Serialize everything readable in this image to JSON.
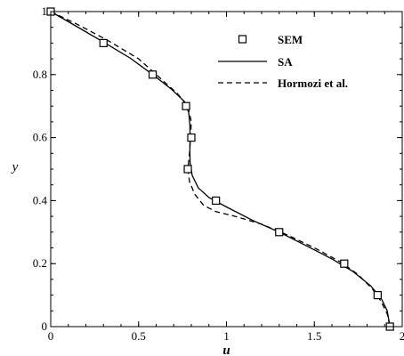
{
  "chart_data": {
    "type": "line",
    "xlabel": "u",
    "ylabel": "y",
    "xlim": [
      0,
      2
    ],
    "ylim": [
      0,
      1
    ],
    "x_ticks": [
      "0",
      "0.5",
      "1",
      "1.5",
      "2"
    ],
    "y_ticks": [
      "0",
      "0.2",
      "0.4",
      "0.6",
      "0.8",
      "1"
    ],
    "legend_position": "top-right",
    "grid": false,
    "series": [
      {
        "name": "SEM",
        "style": "markers",
        "marker": "open-square",
        "color": "#000000",
        "points": [
          {
            "x": 0.0,
            "y": 1.0
          },
          {
            "x": 0.3,
            "y": 0.9
          },
          {
            "x": 0.58,
            "y": 0.8
          },
          {
            "x": 0.77,
            "y": 0.7
          },
          {
            "x": 0.8,
            "y": 0.6
          },
          {
            "x": 0.78,
            "y": 0.5
          },
          {
            "x": 0.94,
            "y": 0.4
          },
          {
            "x": 1.3,
            "y": 0.3
          },
          {
            "x": 1.67,
            "y": 0.2
          },
          {
            "x": 1.86,
            "y": 0.1
          },
          {
            "x": 1.93,
            "y": 0.0
          }
        ]
      },
      {
        "name": "SA",
        "style": "solid",
        "color": "#000000",
        "points": [
          {
            "x": 0.0,
            "y": 1.0
          },
          {
            "x": 0.15,
            "y": 0.952
          },
          {
            "x": 0.3,
            "y": 0.903
          },
          {
            "x": 0.45,
            "y": 0.853
          },
          {
            "x": 0.58,
            "y": 0.8
          },
          {
            "x": 0.69,
            "y": 0.752
          },
          {
            "x": 0.76,
            "y": 0.715
          },
          {
            "x": 0.785,
            "y": 0.68
          },
          {
            "x": 0.792,
            "y": 0.64
          },
          {
            "x": 0.793,
            "y": 0.6
          },
          {
            "x": 0.792,
            "y": 0.56
          },
          {
            "x": 0.793,
            "y": 0.52
          },
          {
            "x": 0.805,
            "y": 0.48
          },
          {
            "x": 0.84,
            "y": 0.44
          },
          {
            "x": 0.9,
            "y": 0.41
          },
          {
            "x": 1.0,
            "y": 0.38
          },
          {
            "x": 1.15,
            "y": 0.337
          },
          {
            "x": 1.3,
            "y": 0.3
          },
          {
            "x": 1.45,
            "y": 0.258
          },
          {
            "x": 1.6,
            "y": 0.215
          },
          {
            "x": 1.72,
            "y": 0.175
          },
          {
            "x": 1.82,
            "y": 0.13
          },
          {
            "x": 1.88,
            "y": 0.09
          },
          {
            "x": 1.915,
            "y": 0.05
          },
          {
            "x": 1.93,
            "y": 0.0
          }
        ]
      },
      {
        "name": "Hormozi et al.",
        "style": "dashed",
        "color": "#000000",
        "points": [
          {
            "x": 0.0,
            "y": 1.0
          },
          {
            "x": 0.15,
            "y": 0.96
          },
          {
            "x": 0.32,
            "y": 0.91
          },
          {
            "x": 0.5,
            "y": 0.85
          },
          {
            "x": 0.63,
            "y": 0.785
          },
          {
            "x": 0.72,
            "y": 0.74
          },
          {
            "x": 0.78,
            "y": 0.7
          },
          {
            "x": 0.8,
            "y": 0.65
          },
          {
            "x": 0.795,
            "y": 0.6
          },
          {
            "x": 0.79,
            "y": 0.55
          },
          {
            "x": 0.78,
            "y": 0.5
          },
          {
            "x": 0.79,
            "y": 0.46
          },
          {
            "x": 0.82,
            "y": 0.42
          },
          {
            "x": 0.87,
            "y": 0.385
          },
          {
            "x": 0.94,
            "y": 0.365
          },
          {
            "x": 1.05,
            "y": 0.35
          },
          {
            "x": 1.2,
            "y": 0.325
          },
          {
            "x": 1.35,
            "y": 0.29
          },
          {
            "x": 1.5,
            "y": 0.25
          },
          {
            "x": 1.65,
            "y": 0.205
          },
          {
            "x": 1.75,
            "y": 0.165
          },
          {
            "x": 1.83,
            "y": 0.12
          },
          {
            "x": 1.88,
            "y": 0.08
          },
          {
            "x": 1.915,
            "y": 0.04
          },
          {
            "x": 1.93,
            "y": 0.0
          }
        ]
      }
    ]
  }
}
